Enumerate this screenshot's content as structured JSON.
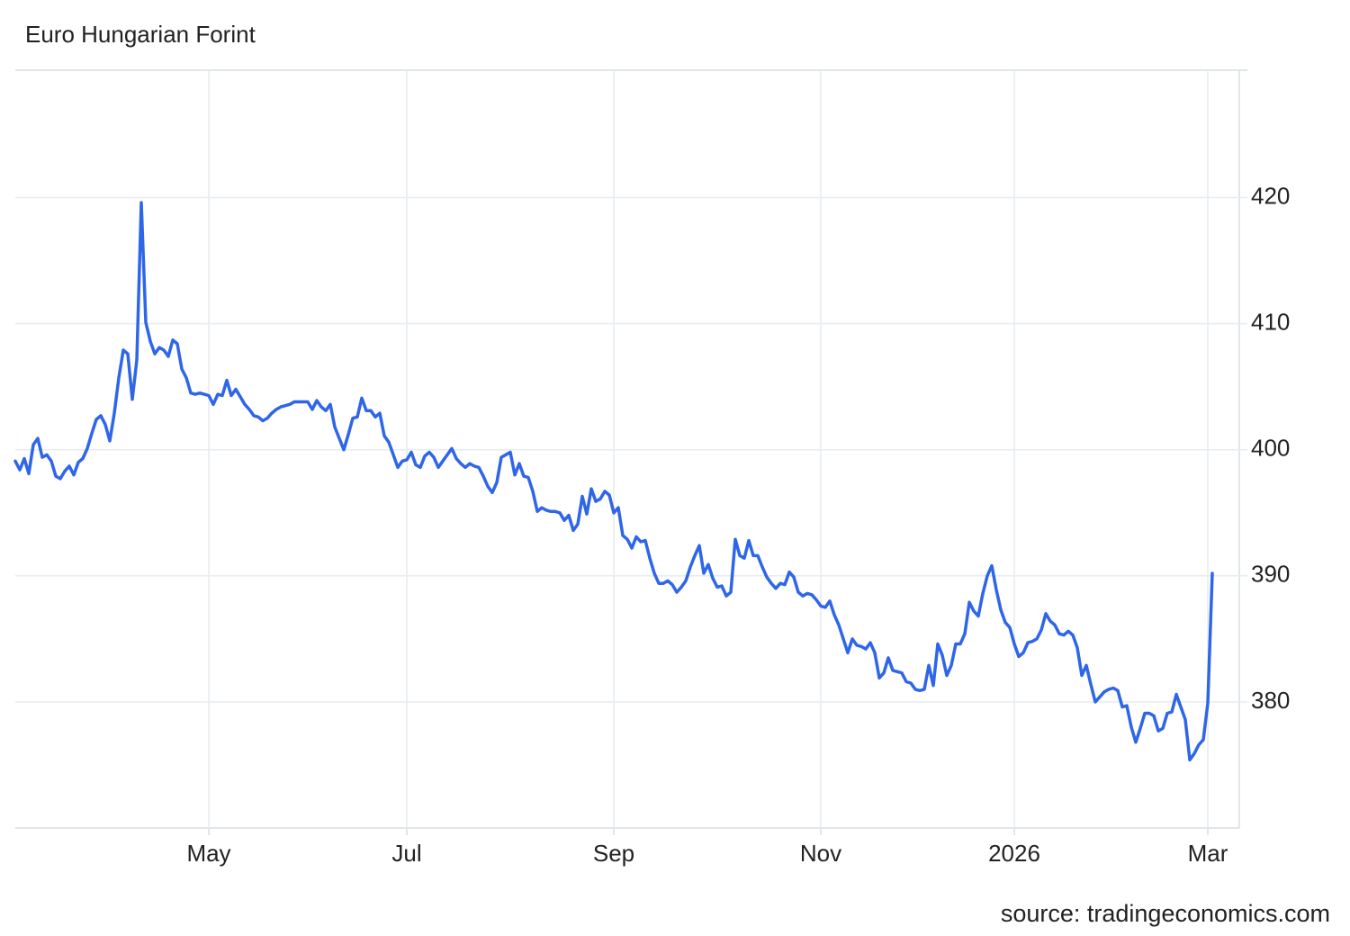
{
  "chart_data": {
    "type": "line",
    "title": "Euro Hungarian Forint",
    "source": "source: tradingeconomics.com",
    "color": "#2f66e8",
    "grid": true,
    "ylim": [
      370,
      430.1
    ],
    "yticks": [
      380,
      390,
      400,
      410,
      420
    ],
    "categories": [
      null,
      null,
      null,
      null,
      null,
      null,
      null,
      null,
      null,
      null,
      null,
      null,
      null,
      null,
      null,
      null,
      null,
      null,
      null,
      null,
      null,
      null,
      null,
      null,
      null,
      null,
      null,
      null,
      null,
      null,
      null,
      null,
      null,
      null,
      null,
      null,
      null,
      null,
      null,
      null,
      null,
      null,
      null,
      "May",
      null,
      null,
      null,
      null,
      null,
      null,
      null,
      null,
      null,
      null,
      null,
      null,
      null,
      null,
      null,
      null,
      null,
      null,
      null,
      null,
      null,
      null,
      null,
      null,
      null,
      null,
      null,
      null,
      null,
      null,
      null,
      null,
      null,
      null,
      null,
      null,
      null,
      null,
      null,
      null,
      null,
      null,
      null,
      "Jul",
      null,
      null,
      null,
      null,
      null,
      null,
      null,
      null,
      null,
      null,
      null,
      null,
      null,
      null,
      null,
      null,
      null,
      null,
      null,
      null,
      null,
      null,
      null,
      null,
      null,
      null,
      null,
      null,
      null,
      null,
      null,
      null,
      null,
      null,
      null,
      null,
      null,
      null,
      null,
      null,
      null,
      null,
      null,
      null,
      null,
      "Sep",
      null,
      null,
      null,
      null,
      null,
      null,
      null,
      null,
      null,
      null,
      null,
      null,
      null,
      null,
      null,
      null,
      null,
      null,
      null,
      null,
      null,
      null,
      null,
      null,
      null,
      null,
      null,
      null,
      null,
      null,
      null,
      null,
      null,
      null,
      null,
      null,
      null,
      null,
      null,
      null,
      null,
      null,
      null,
      null,
      null,
      "Nov",
      null,
      null,
      null,
      null,
      null,
      null,
      null,
      null,
      null,
      null,
      null,
      null,
      null,
      null,
      null,
      null,
      null,
      null,
      null,
      null,
      null,
      null,
      null,
      null,
      null,
      null,
      null,
      null,
      null,
      null,
      null,
      null,
      null,
      null,
      null,
      null,
      null,
      null,
      null,
      null,
      null,
      null,
      "2026",
      null,
      null,
      null,
      null,
      null,
      null,
      null,
      null,
      null,
      null,
      null,
      null,
      null,
      null,
      null,
      null,
      null,
      null,
      null,
      null,
      null,
      null,
      null,
      null,
      null,
      null,
      null,
      null,
      null,
      null,
      null,
      null,
      null,
      null,
      null,
      null,
      null,
      null,
      null,
      null,
      null,
      null,
      "Mar",
      null
    ],
    "values": [
      399.1,
      398.4,
      399.3,
      398.1,
      400.4,
      400.9,
      399.4,
      399.6,
      399.1,
      397.9,
      397.7,
      398.3,
      398.7,
      398.0,
      399.0,
      399.3,
      400.1,
      401.3,
      402.4,
      402.7,
      402.0,
      400.7,
      402.9,
      405.7,
      407.9,
      407.6,
      404.0,
      407.1,
      419.6,
      410.1,
      408.6,
      407.6,
      408.1,
      407.9,
      407.4,
      408.7,
      408.4,
      406.4,
      405.7,
      404.5,
      404.4,
      404.5,
      404.4,
      404.3,
      403.6,
      404.4,
      404.3,
      405.5,
      404.3,
      404.8,
      404.2,
      403.6,
      403.2,
      402.7,
      402.6,
      402.3,
      402.5,
      402.9,
      403.2,
      403.4,
      403.5,
      403.6,
      403.8,
      403.8,
      403.8,
      403.8,
      403.2,
      403.9,
      403.4,
      403.1,
      403.6,
      401.8,
      400.9,
      400.0,
      401.2,
      402.5,
      402.6,
      404.1,
      403.1,
      403.1,
      402.6,
      402.9,
      401.1,
      400.6,
      399.6,
      398.6,
      399.1,
      399.2,
      399.8,
      398.8,
      398.6,
      399.5,
      399.8,
      399.4,
      398.6,
      399.1,
      399.6,
      400.1,
      399.3,
      398.9,
      398.6,
      398.9,
      398.7,
      398.6,
      397.9,
      397.1,
      396.6,
      397.4,
      399.4,
      399.6,
      399.8,
      398.0,
      398.9,
      397.9,
      397.8,
      396.7,
      395.1,
      395.4,
      395.2,
      395.1,
      395.1,
      395.0,
      394.4,
      394.8,
      393.6,
      394.1,
      396.3,
      394.9,
      396.9,
      395.9,
      396.1,
      396.7,
      396.4,
      395.0,
      395.4,
      393.2,
      392.9,
      392.2,
      393.1,
      392.7,
      392.8,
      391.4,
      390.2,
      389.4,
      389.4,
      389.6,
      389.3,
      388.7,
      389.1,
      389.6,
      390.7,
      391.6,
      392.4,
      390.2,
      390.9,
      389.8,
      389.1,
      389.2,
      388.4,
      388.7,
      392.9,
      391.6,
      391.4,
      392.8,
      391.6,
      391.6,
      390.7,
      389.9,
      389.4,
      389.0,
      389.4,
      389.3,
      390.3,
      389.9,
      388.7,
      388.4,
      388.6,
      388.5,
      388.1,
      387.6,
      387.5,
      388.0,
      386.9,
      386.1,
      385.0,
      383.9,
      385.0,
      384.5,
      384.4,
      384.2,
      384.7,
      383.9,
      381.9,
      382.3,
      383.5,
      382.5,
      382.4,
      382.3,
      381.6,
      381.5,
      381.0,
      380.9,
      381.0,
      382.9,
      381.3,
      384.6,
      383.7,
      382.1,
      382.9,
      384.6,
      384.6,
      385.4,
      387.9,
      387.2,
      386.8,
      388.6,
      390.0,
      390.8,
      388.9,
      387.3,
      386.3,
      385.9,
      384.6,
      383.6,
      383.9,
      384.7,
      384.8,
      385.0,
      385.7,
      387.0,
      386.4,
      386.1,
      385.4,
      385.3,
      385.6,
      385.3,
      384.3,
      382.1,
      382.9,
      381.4,
      380.0,
      380.4,
      380.8,
      381.0,
      381.1,
      380.9,
      379.6,
      379.7,
      378.0,
      376.8,
      377.9,
      379.1,
      379.1,
      378.9,
      377.7,
      377.9,
      379.1,
      379.2,
      380.6,
      379.6,
      378.6,
      375.4,
      375.9,
      376.6,
      377.0,
      379.9,
      390.2
    ]
  }
}
